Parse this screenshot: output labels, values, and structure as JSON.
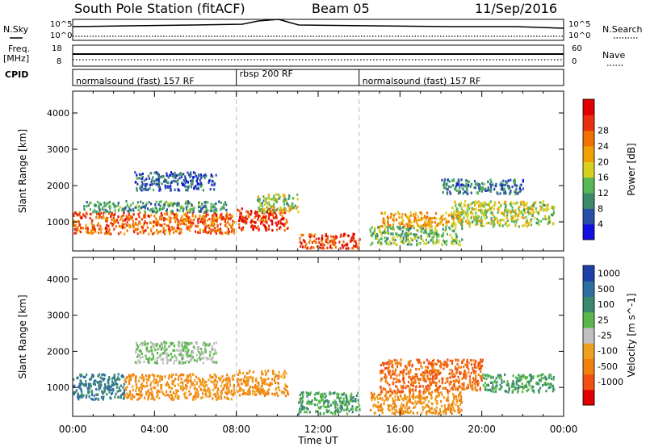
{
  "header": {
    "station": "South Pole Station (fitACF)",
    "beam": "Beam 05",
    "date": "11/Sep/2016"
  },
  "left_labels": {
    "nsky": "N.Sky",
    "freq_line1": "Freq.",
    "freq_line2": "[MHz]",
    "cpid": "CPID"
  },
  "right_labels": {
    "nsearch": "N.Search",
    "nave": "Nave"
  },
  "strip_ticks": {
    "noise_left": [
      "10^5",
      "10^0"
    ],
    "noise_right": [
      "10^5",
      "10^0"
    ],
    "freq_left": [
      "18",
      "8"
    ],
    "freq_right": [
      "60",
      "0"
    ]
  },
  "cpid_segments": [
    {
      "label": "normalsound (fast) 157 RF",
      "start_hour": 0
    },
    {
      "label": "rbsp 200 RF",
      "start_hour": 8
    },
    {
      "label": "normalsound (fast) 157 RF",
      "start_hour": 14
    }
  ],
  "colors": {
    "power": [
      "#1010e0",
      "#2a4fa8",
      "#3d8a6a",
      "#58b858",
      "#d8d020",
      "#f0a000",
      "#f07000",
      "#e83010",
      "#e00000"
    ],
    "velocity": [
      "#1f3fa8",
      "#2f6f9f",
      "#3a8a6f",
      "#5ab84a",
      "#c0c0c0",
      "#f0a020",
      "#f08010",
      "#f05010",
      "#e00000"
    ]
  },
  "chart_data": [
    {
      "type": "heatmap",
      "quantity": "Power",
      "ylabel": "Slant Range [km]",
      "xlabel": "",
      "ylim": [
        200,
        4600
      ],
      "xlim_hours": [
        0,
        24
      ],
      "yticks": [
        1000,
        2000,
        3000,
        4000
      ],
      "colorbar_label": "Power [dB]",
      "colorbar_ticks": [
        "4",
        "8",
        "12",
        "16",
        "20",
        "24",
        "28"
      ],
      "colorbar_range": [
        0,
        32
      ],
      "regions": [
        {
          "t0": 0.0,
          "t1": 7.9,
          "r0": 700,
          "r1": 1300,
          "value": 24
        },
        {
          "t0": 0.5,
          "t1": 7.5,
          "r0": 1300,
          "r1": 1600,
          "value": 10
        },
        {
          "t0": 8.0,
          "t1": 10.5,
          "r0": 800,
          "r1": 1400,
          "value": 27
        },
        {
          "t0": 9.0,
          "t1": 11.0,
          "r0": 1300,
          "r1": 1800,
          "value": 14
        },
        {
          "t0": 11.0,
          "t1": 14.0,
          "r0": 300,
          "r1": 700,
          "value": 26
        },
        {
          "t0": 14.5,
          "t1": 19.0,
          "r0": 400,
          "r1": 900,
          "value": 12
        },
        {
          "t0": 15.0,
          "t1": 19.0,
          "r0": 900,
          "r1": 1300,
          "value": 20
        },
        {
          "t0": 18.5,
          "t1": 23.5,
          "r0": 900,
          "r1": 1600,
          "value": 15
        },
        {
          "t0": 3.0,
          "t1": 7.0,
          "r0": 1900,
          "r1": 2400,
          "value": 6
        },
        {
          "t0": 18.0,
          "t1": 22.0,
          "r0": 1800,
          "r1": 2200,
          "value": 8
        }
      ]
    },
    {
      "type": "heatmap",
      "quantity": "Velocity",
      "ylabel": "Slant Range [km]",
      "xlabel": "Time UT",
      "ylim": [
        200,
        4600
      ],
      "xlim_hours": [
        0,
        24
      ],
      "yticks": [
        1000,
        2000,
        3000,
        4000
      ],
      "colorbar_label": "Velocity [m s^-1]",
      "colorbar_ticks": [
        "1000",
        "500",
        "100",
        "25",
        "-25",
        "-100",
        "-500",
        "-1000"
      ],
      "regions": [
        {
          "t0": 0.0,
          "t1": 2.5,
          "r0": 700,
          "r1": 1400,
          "value": 500
        },
        {
          "t0": 2.5,
          "t1": 7.9,
          "r0": 700,
          "r1": 1400,
          "value": -100
        },
        {
          "t0": 3.0,
          "t1": 7.0,
          "r0": 1700,
          "r1": 2300,
          "value": 25
        },
        {
          "t0": 8.0,
          "t1": 10.5,
          "r0": 800,
          "r1": 1500,
          "value": -100
        },
        {
          "t0": 11.0,
          "t1": 14.0,
          "r0": 300,
          "r1": 900,
          "value": 100
        },
        {
          "t0": 14.5,
          "t1": 19.0,
          "r0": 300,
          "r1": 900,
          "value": -100
        },
        {
          "t0": 15.0,
          "t1": 20.0,
          "r0": 900,
          "r1": 1800,
          "value": -500
        },
        {
          "t0": 20.0,
          "t1": 23.5,
          "r0": 900,
          "r1": 1400,
          "value": 100
        }
      ]
    }
  ],
  "time_ticks": [
    "00:00",
    "04:00",
    "08:00",
    "12:00",
    "16:00",
    "20:00",
    "00:00"
  ]
}
